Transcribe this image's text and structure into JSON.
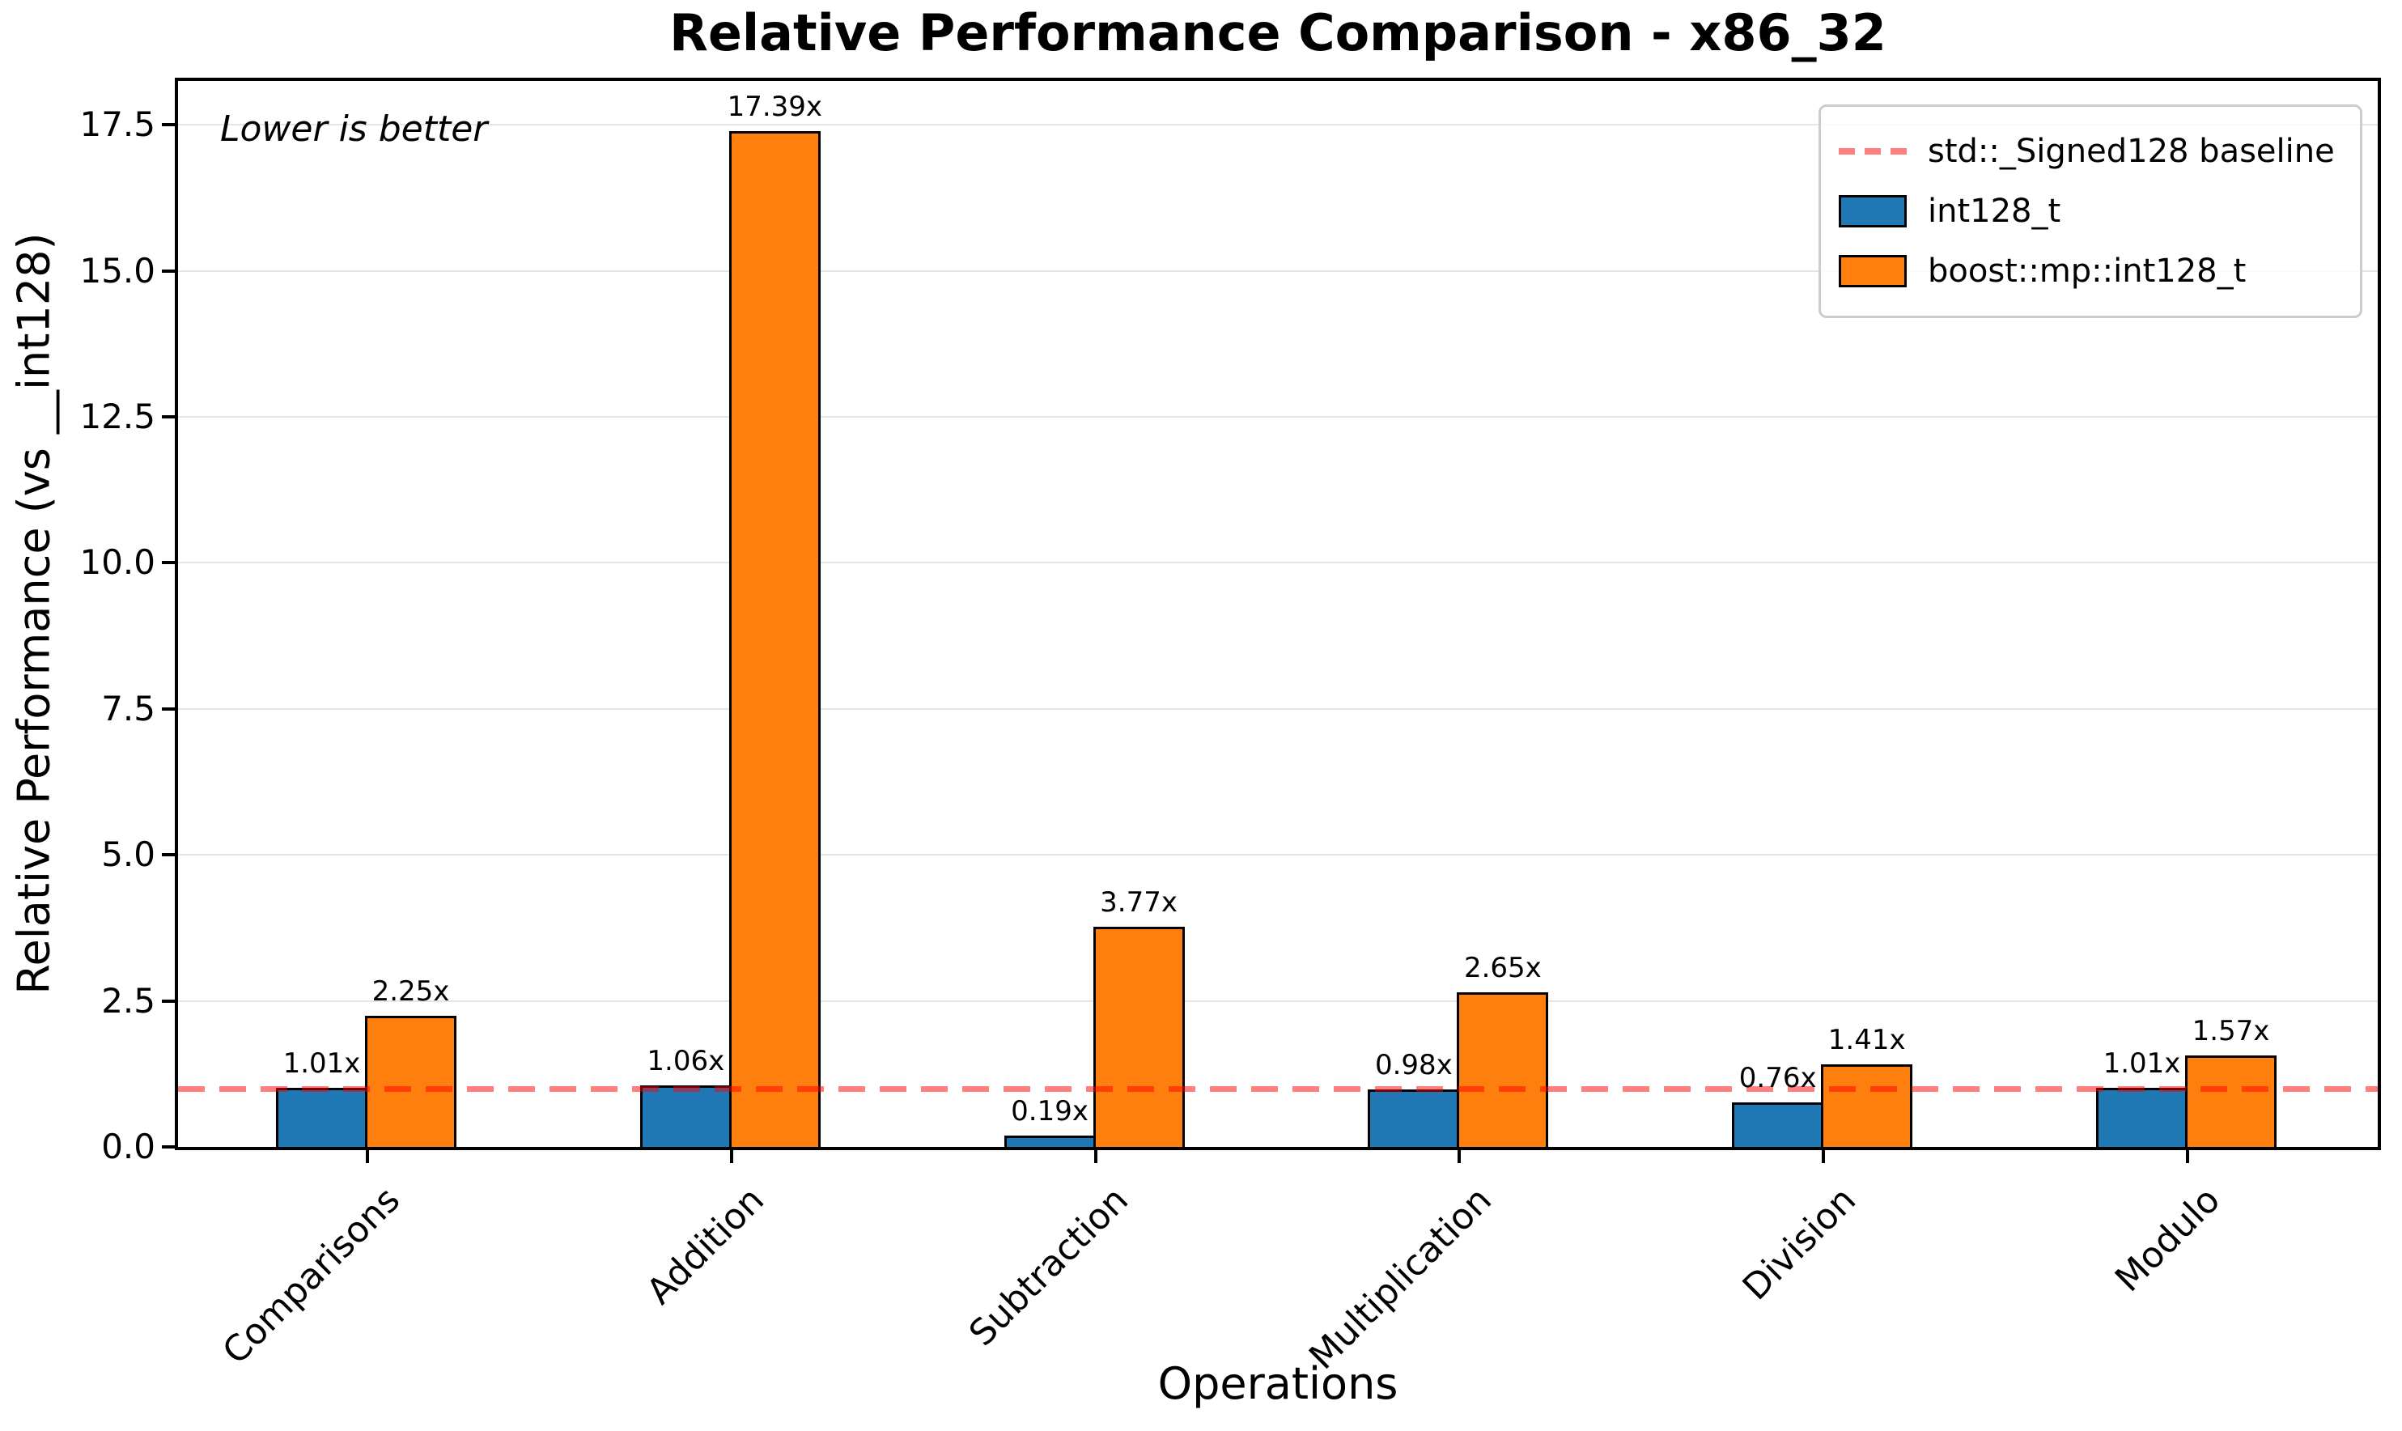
{
  "chart_data": {
    "type": "bar",
    "title": "Relative Performance Comparison - x86_32",
    "xlabel": "Operations",
    "ylabel": "Relative Performance (vs __int128)",
    "annotation": "Lower is better",
    "categories": [
      "Comparisons",
      "Addition",
      "Subtraction",
      "Multiplication",
      "Division",
      "Modulo"
    ],
    "series": [
      {
        "name": "int128_t",
        "color": "#1f77b4",
        "values": [
          1.01,
          1.06,
          0.19,
          0.98,
          0.76,
          1.01
        ],
        "labels": [
          "1.01x",
          "1.06x",
          "0.19x",
          "0.98x",
          "0.76x",
          "1.01x"
        ]
      },
      {
        "name": "boost::mp::int128_t",
        "color": "#ff7f0e",
        "values": [
          2.25,
          17.39,
          3.77,
          2.65,
          1.41,
          1.57
        ],
        "labels": [
          "2.25x",
          "17.39x",
          "3.77x",
          "2.65x",
          "1.41x",
          "1.57x"
        ]
      }
    ],
    "baseline": {
      "value": 1.0,
      "label": "std::_Signed128 baseline",
      "color": "#ff0000",
      "alpha": 0.5,
      "style": "dashed"
    },
    "yticks": {
      "values": [
        0,
        2.5,
        5,
        7.5,
        10,
        12.5,
        15,
        17.5
      ],
      "labels": [
        "0.0",
        "2.5",
        "5.0",
        "7.5",
        "10.0",
        "12.5",
        "15.0",
        "17.5"
      ]
    },
    "ylim": [
      0,
      18.25
    ],
    "grid": true,
    "grid_color": "#e5e5e5",
    "bar_edge_color": "#000000",
    "legend": {
      "position": "upper right",
      "items": [
        {
          "label": "std::_Signed128 baseline",
          "swatch": "dashed-line",
          "color": "#ff0000"
        },
        {
          "label": "int128_t",
          "swatch": "patch",
          "color": "#1f77b4"
        },
        {
          "label": "boost::mp::int128_t",
          "swatch": "patch",
          "color": "#ff7f0e"
        }
      ]
    }
  }
}
